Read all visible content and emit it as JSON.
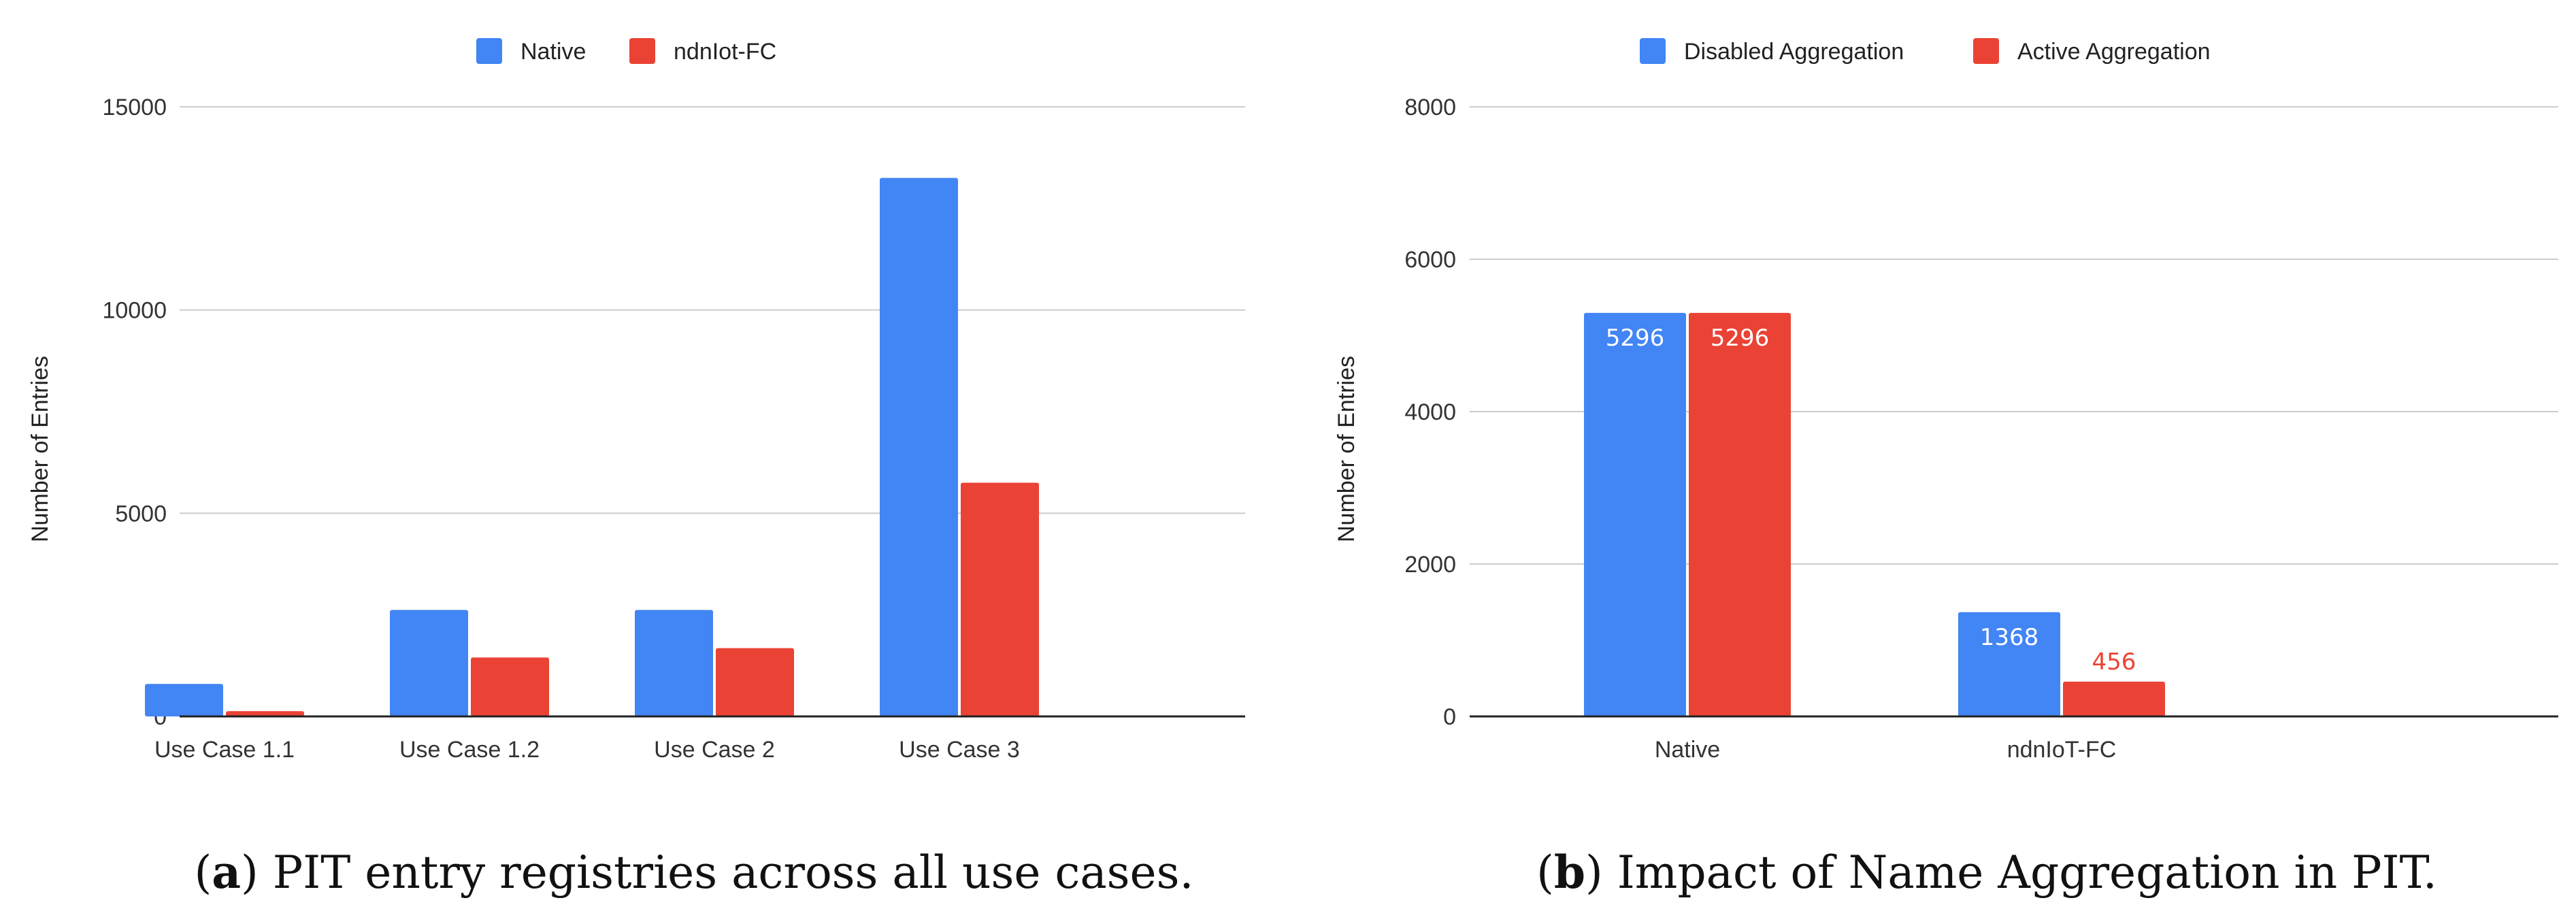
{
  "chart_data": [
    {
      "type": "bar",
      "id": "a",
      "caption_letter": "a",
      "caption_text": " PIT entry registries across all use cases.",
      "ylabel": "Number of Entries",
      "xlabel": "",
      "ylim": [
        0,
        15000
      ],
      "yticks": [
        0,
        5000,
        10000,
        15000
      ],
      "categories": [
        "Use Case 1.1",
        "Use Case 1.2",
        "Use Case 2",
        "Use Case 3"
      ],
      "series": [
        {
          "name": "Native",
          "color": "#4285f4",
          "values": [
            800,
            2620,
            2620,
            13250
          ]
        },
        {
          "name": "ndnIot-FC",
          "color": "#ea4335",
          "values": [
            130,
            1450,
            1680,
            5750
          ]
        }
      ],
      "legend_position": "top"
    },
    {
      "type": "bar",
      "id": "b",
      "caption_letter": "b",
      "caption_text": " Impact of Name Aggregation in PIT.",
      "ylabel": "Number of Entries",
      "xlabel": "",
      "ylim": [
        0,
        8000
      ],
      "yticks": [
        0,
        2000,
        4000,
        6000,
        8000
      ],
      "categories": [
        "Native",
        "ndnIoT-FC"
      ],
      "series": [
        {
          "name": "Disabled Aggregation",
          "color": "#4285f4",
          "values": [
            5296,
            1368
          ],
          "labels": [
            "5296",
            "1368"
          ]
        },
        {
          "name": "Active Aggregation",
          "color": "#ea4335",
          "values": [
            5296,
            456
          ],
          "labels": [
            "5296",
            "456"
          ]
        }
      ],
      "legend_position": "top"
    }
  ]
}
